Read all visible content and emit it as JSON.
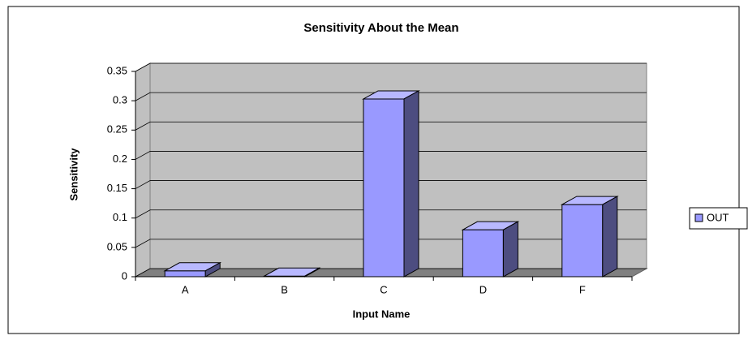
{
  "chart_data": {
    "type": "bar3d",
    "title": "Sensitivity About the Mean",
    "x_label": "Input Name",
    "y_label": "Sensitivity",
    "categories": [
      "A",
      "B",
      "C",
      "D",
      "F"
    ],
    "series": [
      {
        "name": "OUT",
        "color": "#9999ff",
        "values": [
          0.01,
          0.001,
          0.303,
          0.08,
          0.123
        ]
      }
    ],
    "ylim": [
      0,
      0.35
    ],
    "yticks": [
      0,
      0.05,
      0.1,
      0.15,
      0.2,
      0.25,
      0.3,
      0.35
    ],
    "grid": true,
    "legend": "right"
  }
}
